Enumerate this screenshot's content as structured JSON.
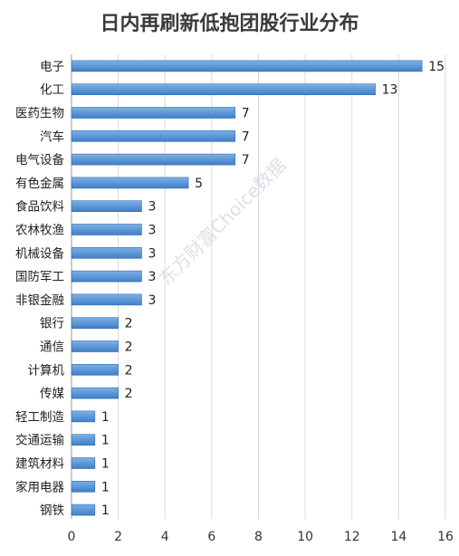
{
  "chart_data": {
    "type": "bar",
    "orientation": "horizontal",
    "title": "日内再刷新低抱团股行业分布",
    "categories": [
      "电子",
      "化工",
      "医药生物",
      "汽车",
      "电气设备",
      "有色金属",
      "食品饮料",
      "农林牧渔",
      "机械设备",
      "国防军工",
      "非银金融",
      "银行",
      "通信",
      "计算机",
      "传媒",
      "轻工制造",
      "交通运输",
      "建筑材料",
      "家用电器",
      "钢铁"
    ],
    "values": [
      15,
      13,
      7,
      7,
      7,
      5,
      3,
      3,
      3,
      3,
      3,
      2,
      2,
      2,
      2,
      1,
      1,
      1,
      1,
      1
    ],
    "xlim": [
      0,
      16
    ],
    "x_ticks": [
      "0",
      "2",
      "4",
      "6",
      "8",
      "10",
      "12",
      "14",
      "16"
    ],
    "grid": true,
    "watermark": "东方财富Choice数据",
    "colors": {
      "bar_top": "#7fb0e4",
      "bar_bottom": "#3f7fc8",
      "bar_edge": "#2f6bb0"
    }
  }
}
